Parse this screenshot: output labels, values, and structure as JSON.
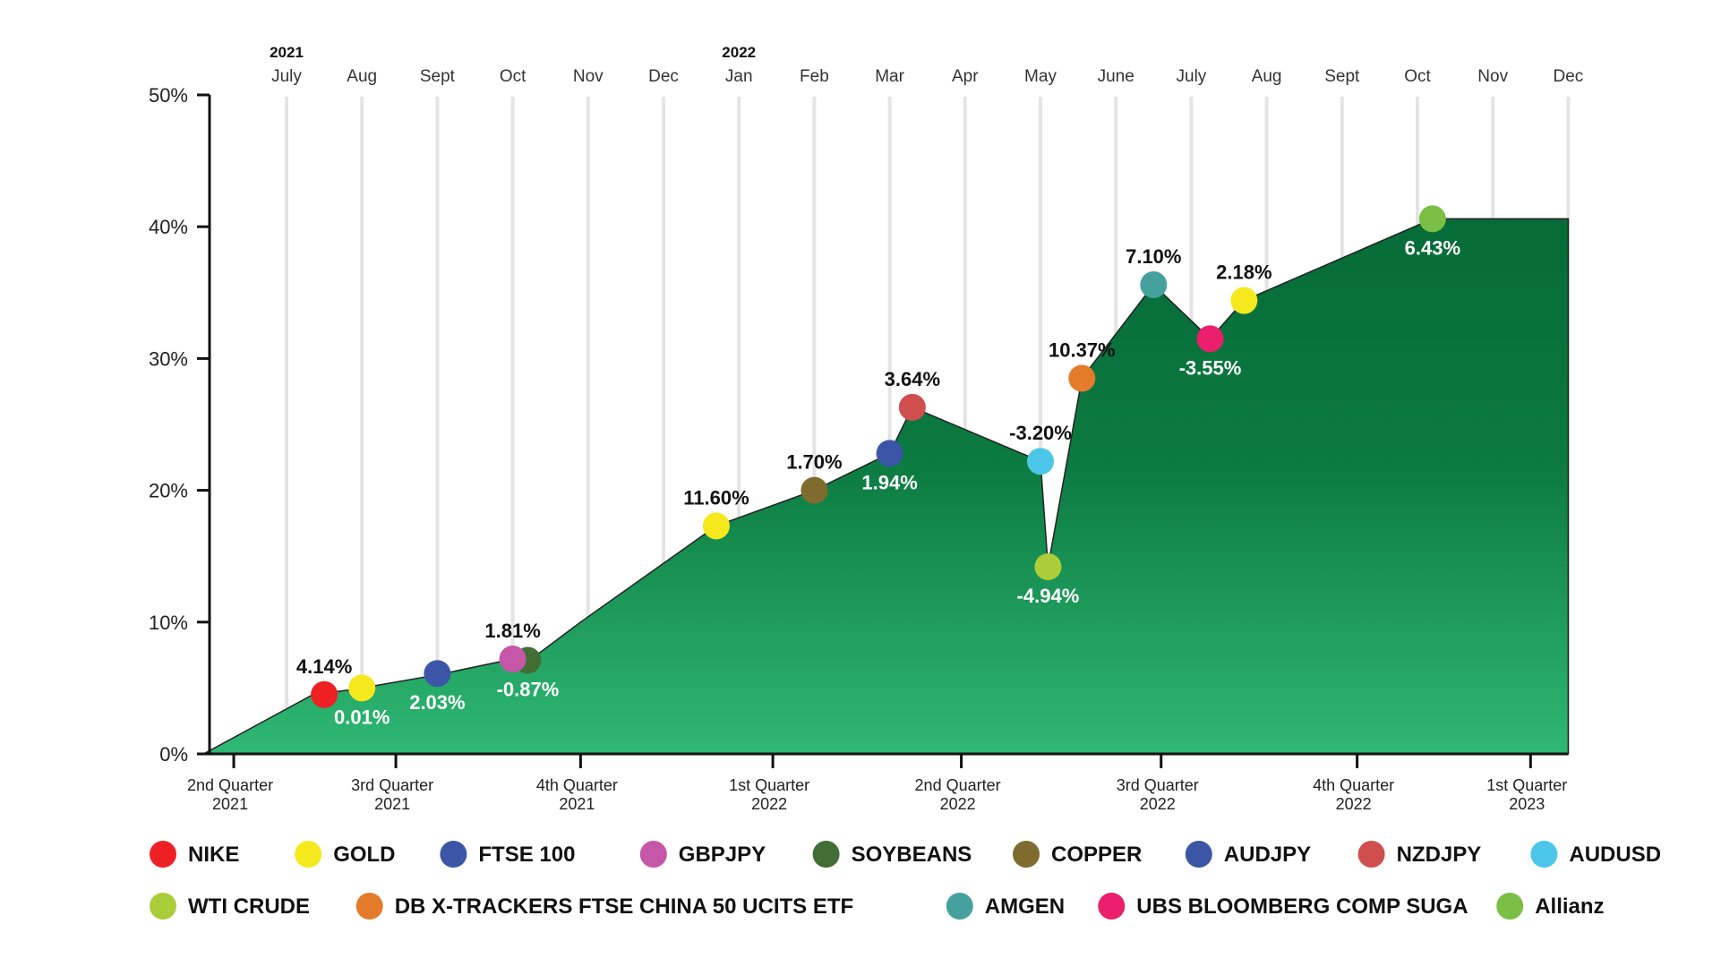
{
  "chart_data": {
    "type": "area",
    "y_ticks": [
      "0%",
      "10%",
      "20%",
      "30%",
      "40%",
      "50%"
    ],
    "ylim": [
      0,
      50
    ],
    "years": [
      {
        "label": "2021",
        "month_index": 0
      },
      {
        "label": "2022",
        "month_index": 6
      }
    ],
    "months": [
      "July",
      "Aug",
      "Sept",
      "Oct",
      "Nov",
      "Dec",
      "Jan",
      "Feb",
      "Mar",
      "Apr",
      "May",
      "June",
      "July",
      "Aug",
      "Sept",
      "Oct",
      "Nov",
      "Dec"
    ],
    "quarters": [
      {
        "line1": "2nd Quarter",
        "line2": "2021",
        "month_pos": -0.7
      },
      {
        "line1": "3rd Quarter",
        "line2": "2021",
        "month_pos": 1.45
      },
      {
        "line1": "4th Quarter",
        "line2": "2021",
        "month_pos": 3.9
      },
      {
        "line1": "1st Quarter",
        "line2": "2022",
        "month_pos": 6.45
      },
      {
        "line1": "2nd Quarter",
        "line2": "2022",
        "month_pos": 8.95
      },
      {
        "line1": "3rd Quarter",
        "line2": "2022",
        "month_pos": 11.6
      },
      {
        "line1": "4th Quarter",
        "line2": "2022",
        "month_pos": 14.2
      },
      {
        "line1": "1st Quarter",
        "line2": "2023",
        "month_pos": 16.5
      }
    ],
    "area_series": [
      {
        "x": -1.1,
        "y": 0
      },
      {
        "x": 0.35,
        "y": 4.5
      },
      {
        "x": 0.9,
        "y": 4.9
      },
      {
        "x": 2.0,
        "y": 6.0
      },
      {
        "x": 3.0,
        "y": 7.2
      },
      {
        "x": 3.2,
        "y": 7.0
      },
      {
        "x": 3.9,
        "y": 10.0
      },
      {
        "x": 5.7,
        "y": 17.3
      },
      {
        "x": 7.0,
        "y": 20.0
      },
      {
        "x": 8.0,
        "y": 22.8
      },
      {
        "x": 8.3,
        "y": 26.3
      },
      {
        "x": 10.0,
        "y": 22.2
      },
      {
        "x": 10.1,
        "y": 14.2
      },
      {
        "x": 10.55,
        "y": 28.5
      },
      {
        "x": 11.5,
        "y": 35.6
      },
      {
        "x": 12.25,
        "y": 31.5
      },
      {
        "x": 12.7,
        "y": 34.4
      },
      {
        "x": 15.2,
        "y": 40.6
      },
      {
        "x": 17.0,
        "y": 40.6
      }
    ],
    "markers": [
      {
        "name": "NIKE",
        "x": 0.5,
        "y": 4.5,
        "color": "#ee2024",
        "label": "4.14%",
        "label_pos": "above",
        "label_color": "#111111"
      },
      {
        "name": "GOLD",
        "x": 1.0,
        "y": 5.0,
        "color": "#f5e81c",
        "label": "0.01%",
        "label_pos": "below",
        "label_color": "#ffffff"
      },
      {
        "name": "FTSE 100",
        "x": 2.0,
        "y": 6.1,
        "color": "#3b56a6",
        "label": "2.03%",
        "label_pos": "below",
        "label_color": "#ffffff"
      },
      {
        "name": "SOYBEANS",
        "x": 3.2,
        "y": 7.1,
        "color": "#426e35",
        "label": "-0.87%",
        "label_pos": "below",
        "label_color": "#ffffff"
      },
      {
        "name": "GBPJPY",
        "x": 3.0,
        "y": 7.2,
        "color": "#c556a8",
        "label": "1.81%",
        "label_pos": "above",
        "label_color": "#111111"
      },
      {
        "name": "GOLD",
        "x": 5.7,
        "y": 17.3,
        "color": "#f5e81c",
        "label": "11.60%",
        "label_pos": "above",
        "label_color": "#111111"
      },
      {
        "name": "COPPER",
        "x": 7.0,
        "y": 20.0,
        "color": "#7f6b2e",
        "label": "1.70%",
        "label_pos": "above",
        "label_color": "#111111"
      },
      {
        "name": "AUDJPY",
        "x": 8.0,
        "y": 22.8,
        "color": "#3b56a6",
        "label": "1.94%",
        "label_pos": "below",
        "label_color": "#ffffff"
      },
      {
        "name": "NZDJPY",
        "x": 8.3,
        "y": 26.3,
        "color": "#d14e4e",
        "label": "3.64%",
        "label_pos": "above",
        "label_color": "#111111"
      },
      {
        "name": "AUDUSD",
        "x": 10.0,
        "y": 22.2,
        "color": "#4cc7ea",
        "label": "-3.20%",
        "label_pos": "above",
        "label_color": "#111111"
      },
      {
        "name": "WTI CRUDE",
        "x": 10.1,
        "y": 14.2,
        "color": "#abcd3a",
        "label": "-4.94%",
        "label_pos": "below",
        "label_color": "#ffffff"
      },
      {
        "name": "DB X-TRACKERS FTSE CHINA 50 UCITS ETF",
        "x": 10.55,
        "y": 28.5,
        "color": "#e37b2a",
        "label": "10.37%",
        "label_pos": "above",
        "label_color": "#111111"
      },
      {
        "name": "AMGEN",
        "x": 11.5,
        "y": 35.6,
        "color": "#45a19e",
        "label": "7.10%",
        "label_pos": "above",
        "label_color": "#111111"
      },
      {
        "name": "UBS BLOOMBERG COMP SUGA",
        "x": 12.25,
        "y": 31.5,
        "color": "#eb1f6c",
        "label": "-3.55%",
        "label_pos": "below",
        "label_color": "#ffffff"
      },
      {
        "name": "GOLD",
        "x": 12.7,
        "y": 34.4,
        "color": "#f5e81c",
        "label": "2.18%",
        "label_pos": "above",
        "label_color": "#111111"
      },
      {
        "name": "Allianz",
        "x": 15.2,
        "y": 40.6,
        "color": "#7abf43",
        "label": "6.43%",
        "label_pos": "below",
        "label_color": "#ffffff"
      }
    ],
    "legend": [
      [
        {
          "label": "NIKE",
          "color": "#ee2024"
        },
        {
          "label": "GOLD",
          "color": "#f5e81c"
        },
        {
          "label": "FTSE 100",
          "color": "#3b56a6"
        },
        {
          "label": "GBPJPY",
          "color": "#c556a8"
        },
        {
          "label": "SOYBEANS",
          "color": "#426e35"
        },
        {
          "label": "COPPER",
          "color": "#7f6b2e"
        },
        {
          "label": "AUDJPY",
          "color": "#3b56a6"
        },
        {
          "label": "NZDJPY",
          "color": "#d14e4e"
        },
        {
          "label": "AUDUSD",
          "color": "#4cc7ea"
        }
      ],
      [
        {
          "label": "WTI CRUDE",
          "color": "#abcd3a"
        },
        {
          "label": "DB X-TRACKERS FTSE CHINA 50 UCITS ETF",
          "color": "#e37b2a"
        },
        {
          "label": "AMGEN",
          "color": "#45a19e"
        },
        {
          "label": "UBS BLOOMBERG COMP SUGA",
          "color": "#eb1f6c"
        },
        {
          "label": "Allianz",
          "color": "#7abf43"
        }
      ]
    ],
    "grid": true,
    "legend_position": "bottom",
    "colors": {
      "area_top": "#066b38",
      "area_bottom": "#2fb874",
      "gridline": "#e4e4e4",
      "axis": "#111111"
    }
  }
}
